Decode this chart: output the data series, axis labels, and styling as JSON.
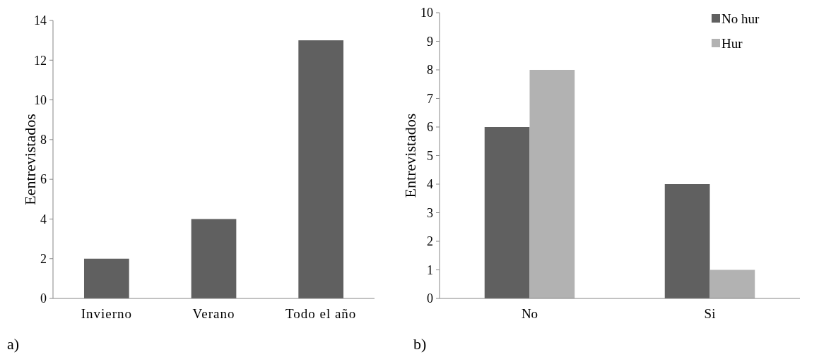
{
  "chart_data": [
    {
      "type": "bar",
      "ylabel": "Eentrevistados",
      "categories": [
        "Invierno",
        "Verano",
        "Todo el año"
      ],
      "values": [
        2,
        4,
        13
      ],
      "color": "#606060",
      "ylim": [
        0,
        14
      ],
      "yticks": [
        0,
        2,
        4,
        6,
        8,
        10,
        12,
        14
      ],
      "annotations": [
        "a)"
      ]
    },
    {
      "type": "bar",
      "ylabel": "Entrevistados",
      "categories": [
        "No",
        "Si"
      ],
      "series": [
        {
          "name": "No hur",
          "color": "#606060",
          "values": [
            6,
            4
          ]
        },
        {
          "name": "Hur",
          "color": "#b2b2b2",
          "values": [
            8,
            1
          ]
        }
      ],
      "ylim": [
        0,
        10
      ],
      "yticks": [
        0,
        1,
        2,
        3,
        4,
        5,
        6,
        7,
        8,
        9,
        10
      ],
      "legend": "top right",
      "annotations": [
        "b)"
      ]
    }
  ]
}
